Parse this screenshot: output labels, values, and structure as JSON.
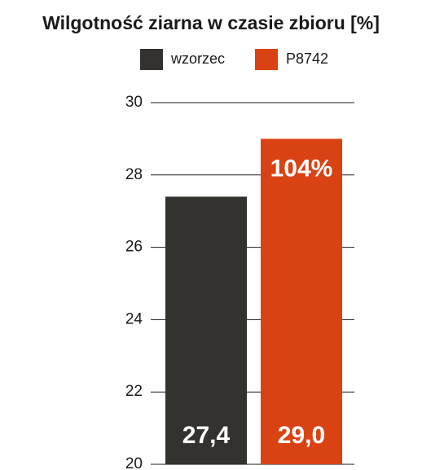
{
  "chart_data": {
    "type": "bar",
    "title": "Wilgotność ziarna w czasie zbioru [%]",
    "categories": [
      null
    ],
    "series": [
      {
        "name": "wzorzec",
        "color": "#33322e",
        "values": [
          27.4
        ],
        "value_labels": [
          "27,4"
        ]
      },
      {
        "name": "P8742",
        "color": "#d94314",
        "values": [
          29.0
        ],
        "value_labels": [
          "29,0"
        ]
      }
    ],
    "annotation": "104%",
    "ylim": [
      20,
      30
    ],
    "yticks": [
      20,
      22,
      24,
      26,
      28,
      30
    ],
    "grid": true
  }
}
